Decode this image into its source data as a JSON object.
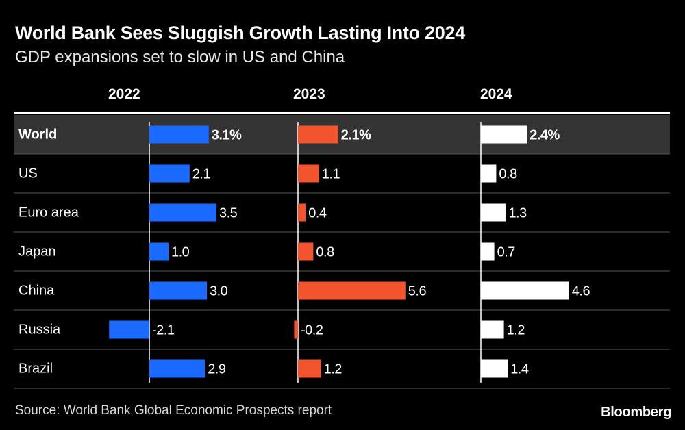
{
  "title": "World Bank Sees Sluggish Growth Lasting Into 2024",
  "subtitle": "GDP expansions set to slow in US and China",
  "source": "Source: World Bank Global Economic Prospects report",
  "brand": "Bloomberg",
  "colors": {
    "2022": "#1a6aff",
    "2023": "#f2542d",
    "2024": "#ffffff",
    "highlight_row": "#333333",
    "divider": "#555555"
  },
  "chart_data": {
    "type": "bar",
    "title": "World Bank Sees Sluggish Growth Lasting Into 2024",
    "subtitle": "GDP expansions set to slow in US and China",
    "categories": [
      "World",
      "US",
      "Euro area",
      "Japan",
      "China",
      "Russia",
      "Brazil"
    ],
    "highlight": "World",
    "series": [
      {
        "name": "2022",
        "values": [
          3.1,
          2.1,
          3.5,
          1.0,
          3.0,
          -2.1,
          2.9
        ],
        "labels": [
          "3.1%",
          "2.1",
          "3.5",
          "1.0",
          "3.0",
          "-2.1",
          "2.9"
        ]
      },
      {
        "name": "2023",
        "values": [
          2.1,
          1.1,
          0.4,
          0.8,
          5.6,
          -0.2,
          1.2
        ],
        "labels": [
          "2.1%",
          "1.1",
          "0.4",
          "0.8",
          "5.6",
          "-0.2",
          "1.2"
        ]
      },
      {
        "name": "2024",
        "values": [
          2.4,
          0.8,
          1.3,
          0.7,
          4.6,
          1.2,
          1.4
        ],
        "labels": [
          "2.4%",
          "0.8",
          "1.3",
          "0.7",
          "4.6",
          "1.2",
          "1.4"
        ]
      }
    ]
  }
}
